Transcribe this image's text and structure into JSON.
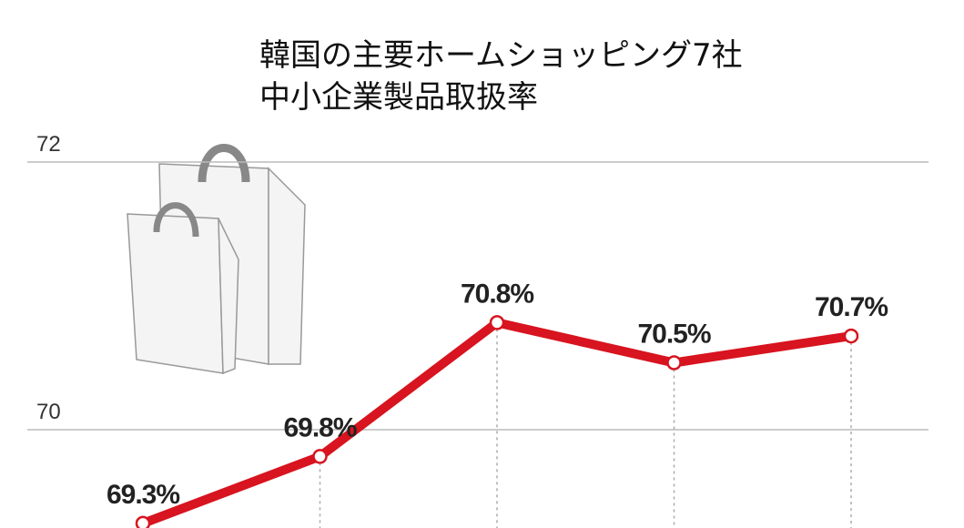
{
  "chart_data": {
    "type": "line",
    "title": [
      "韓国の主要ホームショッピング7社",
      "中小企業製品取扱率"
    ],
    "categories": [
      null,
      null,
      null,
      null,
      null
    ],
    "values": [
      69.3,
      69.8,
      70.8,
      70.5,
      70.7
    ],
    "value_labels": [
      "69.3%",
      "69.8%",
      "70.8%",
      "70.5%",
      "70.7%"
    ],
    "color": "#d7141f",
    "ylim": [
      69.27,
      72.5
    ],
    "yticks": [
      70,
      72
    ],
    "grid": true
  }
}
